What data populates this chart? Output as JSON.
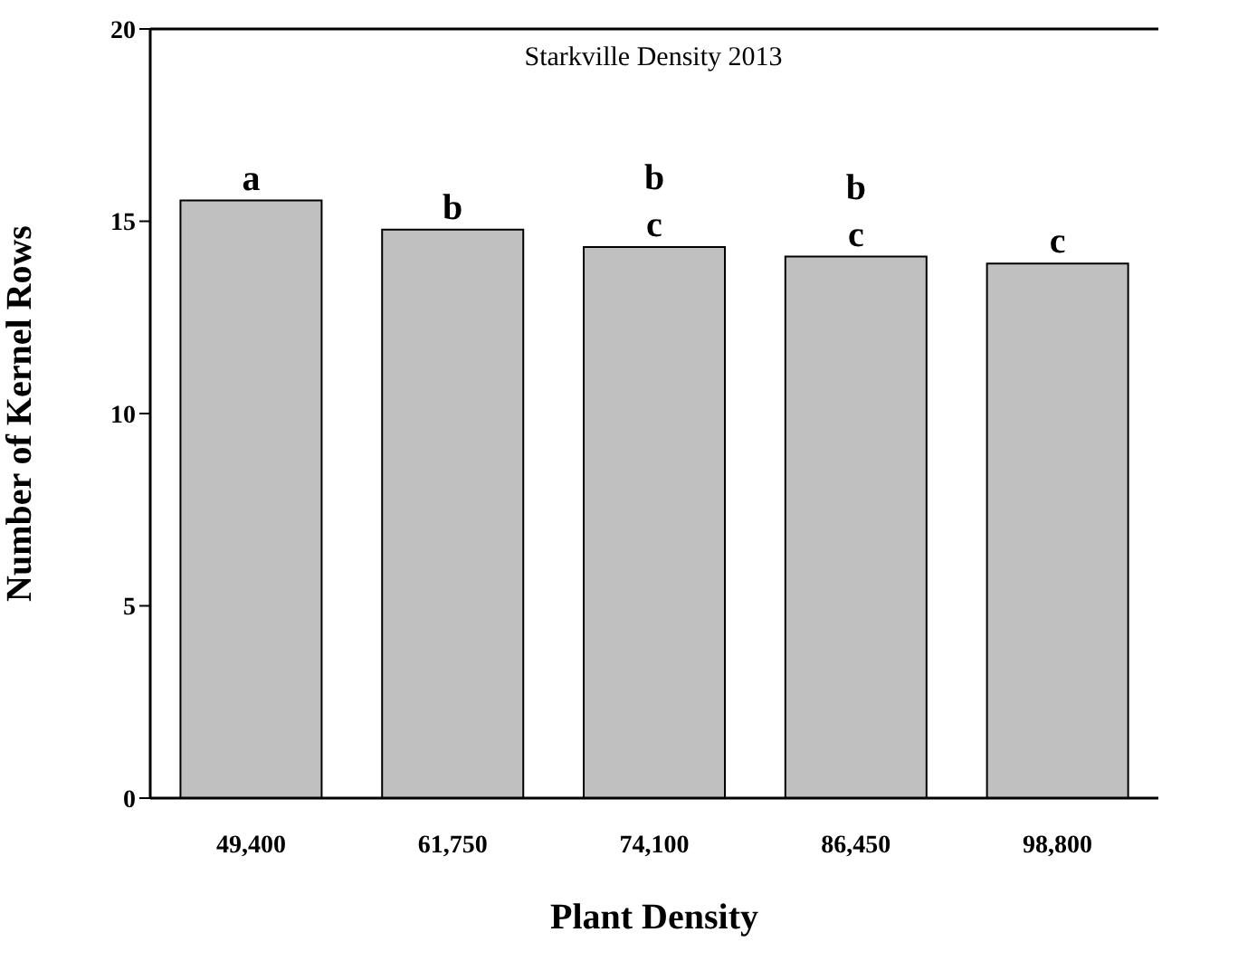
{
  "chart_data": {
    "type": "bar",
    "title": "Starkville Density 2013",
    "xlabel": "Plant Density",
    "ylabel": "Number of Kernel Rows",
    "categories": [
      "49,400",
      "61,750",
      "74,100",
      "86,450",
      "98,800"
    ],
    "values": [
      15.54,
      14.78,
      14.33,
      14.08,
      13.9
    ],
    "color": "#c0c0c0",
    "ylim": [
      0,
      20
    ],
    "yticks": [
      0,
      5,
      10,
      15,
      20
    ],
    "grid": false,
    "legend": false,
    "annotations": [
      {
        "text": "a",
        "x": "49,400",
        "y": 15.54
      },
      {
        "text": "b",
        "x": "61,750",
        "y": 14.78
      },
      {
        "text": "b",
        "x": "74,100",
        "y": 14.33
      },
      {
        "text": "c",
        "x": "74,100",
        "y": 14.33
      },
      {
        "text": "b",
        "x": "86,450",
        "y": 14.08
      },
      {
        "text": "c",
        "x": "86,450",
        "y": 14.08
      },
      {
        "text": "c",
        "x": "98,800",
        "y": 13.9
      }
    ]
  }
}
